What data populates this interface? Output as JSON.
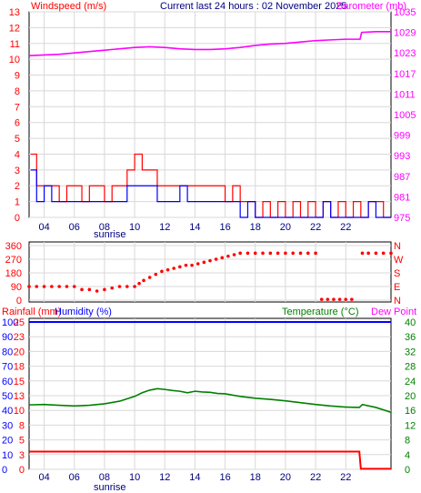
{
  "header": {
    "left_label": "Windspeed (m/s)",
    "title": "Current last 24 hours : 02 November 2025",
    "right_label": "Barometer (mb)"
  },
  "bottom_header": {
    "left_label": "Rainfall (mm)",
    "humidity_label": "Humidity (%)",
    "temperature_label": "Temperature (°C)",
    "dewpoint_label": "Dew Point"
  },
  "markers": {
    "sunrise": "sunrise"
  },
  "colors": {
    "wind_gust": "#ff0000",
    "wind_avg": "#0000ff",
    "barometer": "#ff00ff",
    "direction": "#ff0000",
    "rainfall": "#ff0000",
    "humidity": "#0000ff",
    "temperature": "#008000",
    "dewpoint": "#ff00ff",
    "grid": "#d8d8d8",
    "axis": "#000000"
  },
  "chart_data": [
    {
      "type": "line",
      "name": "wind-barometer",
      "x_ticks": [
        "04",
        "06",
        "08",
        "10",
        "12",
        "14",
        "16",
        "18",
        "20",
        "22",
        "22"
      ],
      "x_range": [
        3,
        27
      ],
      "y_left_ticks": [
        "0",
        "1",
        "2",
        "3",
        "4",
        "5",
        "6",
        "7",
        "8",
        "9",
        "10",
        "11",
        "12",
        "13"
      ],
      "ylim_left": [
        0,
        13
      ],
      "y_right_ticks": [
        "975",
        "981",
        "987",
        "993",
        "999",
        "1005",
        "1011",
        "1017",
        "1023",
        "1029",
        "1035"
      ],
      "ylim_right": [
        975,
        1035
      ],
      "grid": true,
      "series": [
        {
          "name": "Windspeed",
          "axis": "left",
          "style": "step",
          "x": [
            3.1,
            3.5,
            4,
            4.5,
            5,
            5.5,
            6,
            6.5,
            7,
            7.5,
            8,
            8.5,
            9,
            9.5,
            10,
            10.5,
            11,
            11.5,
            12,
            12.5,
            13,
            13.5,
            14,
            14.5,
            15,
            15.5,
            16,
            16.5,
            17,
            17.5,
            18,
            18.5,
            19,
            19.5,
            20,
            20.5,
            21,
            21.5,
            22,
            22.5,
            23,
            23.5,
            24,
            24.5,
            25,
            25.5,
            26,
            26.5
          ],
          "y": [
            4,
            2,
            2,
            2,
            1,
            2,
            2,
            1,
            2,
            2,
            1,
            2,
            2,
            3,
            4,
            3,
            3,
            2,
            2,
            2,
            2,
            2,
            2,
            2,
            2,
            2,
            1,
            2,
            1,
            1,
            0,
            1,
            0,
            1,
            0,
            1,
            0,
            1,
            0,
            1,
            0,
            1,
            0,
            1,
            0,
            1,
            1,
            0
          ]
        },
        {
          "name": "Wind average",
          "axis": "left",
          "style": "step",
          "x": [
            3.1,
            3.5,
            4,
            4.5,
            5,
            5.5,
            6,
            6.5,
            7,
            7.5,
            8,
            8.5,
            9,
            9.5,
            10,
            10.5,
            11,
            11.5,
            12,
            12.5,
            13,
            13.5,
            14,
            14.5,
            15,
            15.5,
            16,
            16.5,
            17,
            17.5,
            18,
            18.5,
            19,
            19.5,
            20,
            20.5,
            21,
            21.5,
            22,
            22.5,
            23,
            23.5,
            24,
            24.5,
            25,
            25.5,
            26,
            26.5
          ],
          "y": [
            3,
            1,
            2,
            1,
            1,
            1,
            1,
            1,
            1,
            1,
            1,
            1,
            1,
            2,
            2,
            2,
            2,
            1,
            1,
            1,
            2,
            1,
            1,
            1,
            1,
            1,
            1,
            1,
            0,
            1,
            0,
            0,
            0,
            0,
            0,
            0,
            0,
            0,
            0,
            1,
            0,
            0,
            0,
            0,
            0,
            1,
            0,
            0
          ]
        },
        {
          "name": "Barometer",
          "axis": "right",
          "style": "line",
          "x": [
            3,
            4,
            5,
            6,
            7,
            8,
            9,
            10,
            11,
            12,
            13,
            14,
            15,
            16,
            17,
            18,
            19,
            20,
            21,
            22,
            23,
            24,
            24.95,
            25.05,
            26,
            27
          ],
          "y": [
            1022.2,
            1022.4,
            1022.6,
            1023.0,
            1023.4,
            1023.8,
            1024.2,
            1024.6,
            1024.8,
            1024.6,
            1024.2,
            1024.0,
            1024.0,
            1024.2,
            1024.6,
            1025.2,
            1025.6,
            1025.8,
            1026.2,
            1026.6,
            1026.8,
            1027.0,
            1027.0,
            1029.0,
            1029.2,
            1029.2
          ]
        }
      ]
    },
    {
      "type": "scatter",
      "name": "wind-direction",
      "x_range": [
        3,
        27
      ],
      "y_ticks_left": [
        "360",
        "270",
        "180",
        "90",
        "0"
      ],
      "y_ticks_right": [
        "N",
        "W",
        "S",
        "E",
        "N"
      ],
      "ylim": [
        0,
        360
      ],
      "grid": true,
      "series": [
        {
          "name": "Wind direction",
          "x": [
            3,
            3.5,
            4,
            4.5,
            5,
            5.5,
            6,
            6.5,
            7,
            7.5,
            8,
            8.5,
            9,
            9.5,
            10,
            10.3,
            10.6,
            11,
            11.4,
            11.8,
            12.2,
            12.6,
            13,
            13.4,
            13.8,
            14.2,
            14.6,
            15,
            15.4,
            15.8,
            16.2,
            16.6,
            17,
            17.5,
            18,
            18.5,
            19,
            19.5,
            20,
            20.5,
            21,
            21.5,
            22,
            22.4,
            22.8,
            23.2,
            23.6,
            24,
            24.4,
            25.1,
            25.5,
            26,
            26.5,
            27
          ],
          "y": [
            90,
            90,
            90,
            90,
            90,
            90,
            90,
            70,
            70,
            60,
            70,
            80,
            90,
            90,
            90,
            110,
            130,
            150,
            170,
            190,
            200,
            210,
            220,
            230,
            230,
            240,
            250,
            260,
            270,
            280,
            290,
            300,
            310,
            310,
            310,
            310,
            310,
            310,
            310,
            310,
            310,
            310,
            310,
            5,
            5,
            5,
            5,
            5,
            5,
            310,
            310,
            310,
            310,
            310
          ]
        }
      ]
    },
    {
      "type": "line",
      "name": "rain-humidity-temperature",
      "x_range": [
        3,
        27
      ],
      "y_left_humidity_ticks": [
        "0",
        "10",
        "20",
        "30",
        "40",
        "50",
        "60",
        "70",
        "80",
        "90",
        "100"
      ],
      "ylim_humidity": [
        0,
        100
      ],
      "y_left_rain_ticks": [
        "0",
        "3",
        "5",
        "8",
        "10",
        "13",
        "15",
        "18",
        "20",
        "23",
        "25"
      ],
      "ylim_rain": [
        0,
        25
      ],
      "y_right_ticks": [
        "0",
        "4",
        "8",
        "12",
        "16",
        "20",
        "24",
        "28",
        "32",
        "36",
        "40"
      ],
      "ylim_temperature": [
        0,
        40
      ],
      "grid": true,
      "series": [
        {
          "name": "Humidity",
          "axis": "humidity",
          "style": "line",
          "x": [
            3,
            27
          ],
          "y": [
            100,
            100
          ]
        },
        {
          "name": "Rainfall",
          "axis": "rain",
          "style": "line",
          "x": [
            3,
            24.9,
            25.0,
            27
          ],
          "y": [
            3.0,
            3.0,
            0.1,
            0.1
          ]
        },
        {
          "name": "Temperature",
          "axis": "temperature",
          "style": "line",
          "x": [
            3,
            4,
            5,
            6,
            7,
            8,
            9,
            10,
            10.5,
            11,
            11.5,
            12,
            12.5,
            13,
            13.5,
            14,
            14.5,
            15,
            15.5,
            16,
            17,
            18,
            19,
            20,
            21,
            22,
            23,
            24,
            24.9,
            25.1,
            26,
            27
          ],
          "y": [
            17.5,
            17.6,
            17.4,
            17.2,
            17.4,
            17.8,
            18.5,
            19.8,
            20.8,
            21.5,
            21.9,
            21.7,
            21.4,
            21.2,
            20.8,
            21.2,
            21.0,
            20.9,
            20.6,
            20.5,
            19.8,
            19.3,
            19.0,
            18.6,
            18.1,
            17.6,
            17.2,
            16.9,
            16.8,
            17.6,
            16.8,
            15.5
          ]
        }
      ]
    }
  ]
}
